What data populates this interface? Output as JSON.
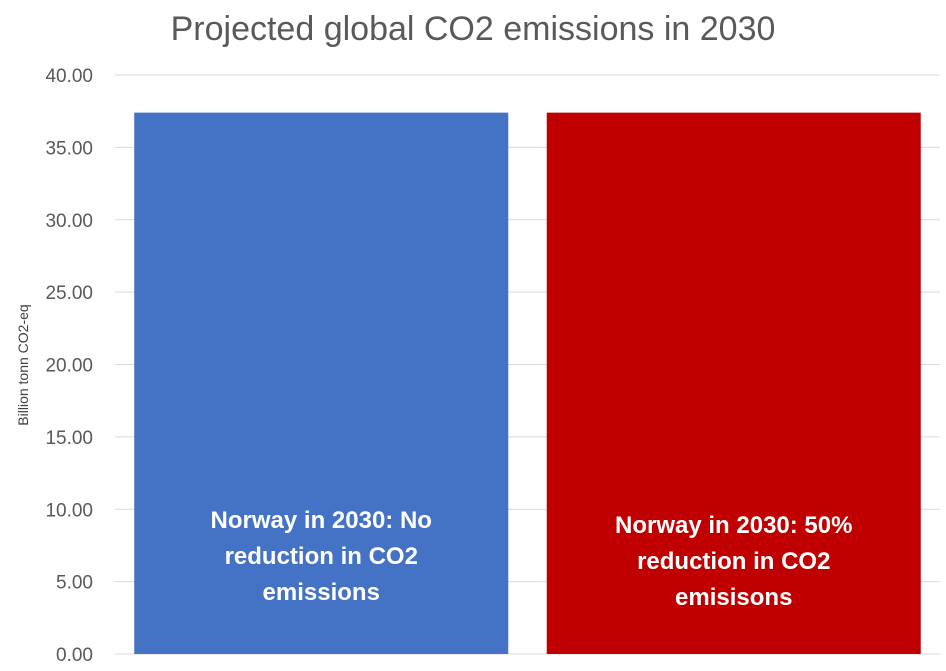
{
  "chart_data": {
    "type": "bar",
    "title": "Projected global CO2 emissions in 2030",
    "xlabel": "",
    "ylabel": "Billion tonn CO2-eq",
    "ylim": [
      0,
      40
    ],
    "ytick_step": 5,
    "ytick_labels": [
      "0.00",
      "5.00",
      "10.00",
      "15.00",
      "20.00",
      "25.00",
      "30.00",
      "35.00",
      "40.00"
    ],
    "grid": true,
    "legend": "none",
    "categories": [
      "Norway in 2030: No reduction in CO2 emissions",
      "Norway in 2030: 50% reduction in CO2 emisisons"
    ],
    "values": [
      37.4,
      37.4
    ],
    "bar_labels": [
      [
        "Norway in 2030: No",
        "reduction in CO2",
        "emissions"
      ],
      [
        "Norway in 2030: 50%",
        "reduction in CO2",
        "emisisons"
      ]
    ],
    "colors": [
      "#4472C4",
      "#C00000"
    ]
  }
}
